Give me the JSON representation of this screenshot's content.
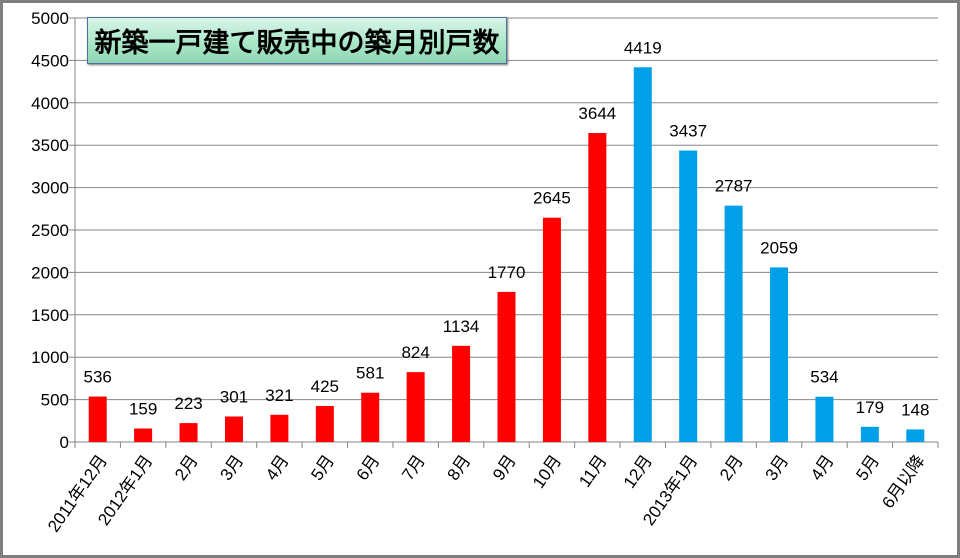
{
  "chart_data": {
    "type": "bar",
    "title": "新築一戸建て販売中の築月別戸数",
    "categories": [
      "2011年12月",
      "2012年1月",
      "2月",
      "3月",
      "4月",
      "5月",
      "6月",
      "7月",
      "8月",
      "9月",
      "10月",
      "11月",
      "12月",
      "2013年1月",
      "2月",
      "3月",
      "4月",
      "5月",
      "6月以降"
    ],
    "values": [
      536,
      159,
      223,
      301,
      321,
      425,
      581,
      824,
      1134,
      1770,
      2645,
      3644,
      4419,
      3437,
      2787,
      2059,
      534,
      179,
      148
    ],
    "bar_colors": [
      "#ff0000",
      "#ff0000",
      "#ff0000",
      "#ff0000",
      "#ff0000",
      "#ff0000",
      "#ff0000",
      "#ff0000",
      "#ff0000",
      "#ff0000",
      "#ff0000",
      "#ff0000",
      "#00a0e9",
      "#00a0e9",
      "#00a0e9",
      "#00a0e9",
      "#00a0e9",
      "#00a0e9",
      "#00a0e9"
    ],
    "ylim": [
      0,
      5000
    ],
    "yticks": [
      0,
      500,
      1000,
      1500,
      2000,
      2500,
      3000,
      3500,
      4000,
      4500,
      5000
    ],
    "xlabel": "",
    "ylabel": "",
    "grid": true,
    "legend": "none"
  }
}
